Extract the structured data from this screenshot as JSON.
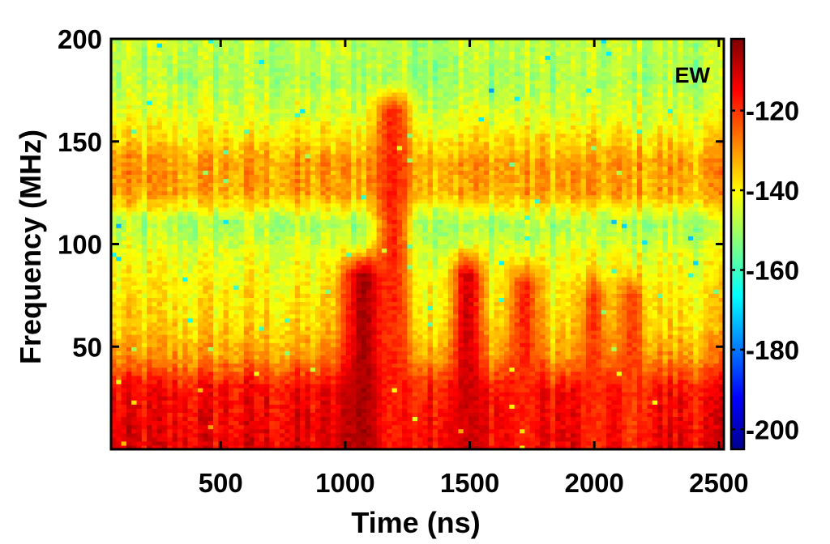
{
  "chart_data": {
    "type": "heatmap",
    "title": "",
    "panel_label": "EW",
    "xlabel": "Time (ns)",
    "ylabel": "Frequency (MHz)",
    "xlim": [
      60,
      2520
    ],
    "ylim": [
      0,
      200
    ],
    "x_ticks": [
      500,
      1000,
      1500,
      2000,
      2500
    ],
    "x_tick_labels": [
      "500",
      "1000",
      "1500",
      "2000",
      "2500"
    ],
    "y_ticks": [
      50,
      100,
      150,
      200
    ],
    "y_tick_labels": [
      "50",
      "100",
      "150",
      "200"
    ],
    "grid": false,
    "colorbar": {
      "range": [
        -205,
        -102
      ],
      "ticks": [
        -120,
        -140,
        -160,
        -180,
        -200
      ],
      "tick_labels": [
        "-120",
        "-140",
        "-160",
        "-180",
        "-200"
      ],
      "colormap": "jet"
    },
    "z_description_units": "dB",
    "z_approx": {
      "background_by_frequency_MHz": [
        {
          "f": 0,
          "z": -113
        },
        {
          "f": 30,
          "z": -116
        },
        {
          "f": 45,
          "z": -130
        },
        {
          "f": 60,
          "z": -137
        },
        {
          "f": 80,
          "z": -140
        },
        {
          "f": 95,
          "z": -143
        },
        {
          "f": 110,
          "z": -150
        },
        {
          "f": 125,
          "z": -132
        },
        {
          "f": 140,
          "z": -131
        },
        {
          "f": 160,
          "z": -143
        },
        {
          "f": 180,
          "z": -149
        },
        {
          "f": 200,
          "z": -147
        }
      ],
      "bursts": [
        {
          "t_center": 1080,
          "t_width": 90,
          "f_max": 100,
          "z": -105
        },
        {
          "t_center": 1190,
          "t_width": 70,
          "f_max": 180,
          "z": -118
        },
        {
          "t_center": 1490,
          "t_width": 60,
          "f_max": 100,
          "z": -110
        },
        {
          "t_center": 1720,
          "t_width": 60,
          "f_max": 95,
          "z": -118
        },
        {
          "t_center": 2000,
          "t_width": 50,
          "f_max": 90,
          "z": -120
        },
        {
          "t_center": 2150,
          "t_width": 50,
          "f_max": 90,
          "z": -121
        }
      ]
    }
  }
}
